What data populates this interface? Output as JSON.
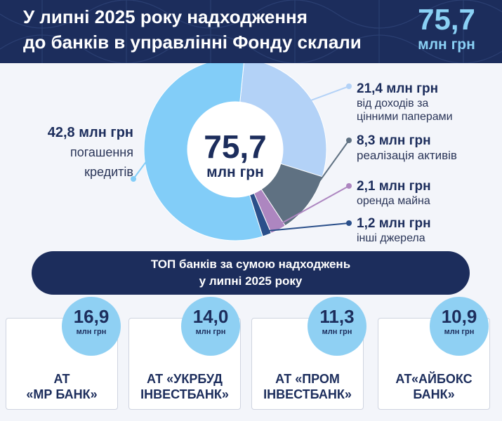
{
  "header": {
    "title_line1": "У липні 2025 року надходження",
    "title_line2": "до банків в управлінні Фонду склали",
    "total_value": "75,7",
    "total_unit": "млн грн"
  },
  "chart_data": {
    "type": "pie",
    "total": 75.7,
    "unit": "млн грн",
    "center_value": "75,7",
    "center_unit": "млн грн",
    "slices": [
      {
        "label_value": "42,8 млн грн",
        "label_desc_1": "погашення",
        "label_desc_2": "кредитів",
        "value": 42.8,
        "color": "#82cdf8"
      },
      {
        "label_value": "21,4 млн грн",
        "label_desc_1": "від доходів за",
        "label_desc_2": "цінними паперами",
        "value": 21.4,
        "color": "#b3d2f7"
      },
      {
        "label_value": "8,3 млн грн",
        "label_desc_1": "реалізація активів",
        "label_desc_2": "",
        "value": 8.3,
        "color": "#5f7182"
      },
      {
        "label_value": "2,1 млн грн",
        "label_desc_1": "оренда майна",
        "label_desc_2": "",
        "value": 2.1,
        "color": "#ad86c0"
      },
      {
        "label_value": "1,2 млн грн",
        "label_desc_1": "інші джерела",
        "label_desc_2": "",
        "value": 1.2,
        "color": "#2a4f8a"
      }
    ]
  },
  "top_banner": {
    "line1": "ТОП банків за сумою надходжень",
    "line2": "у липні 2025 року"
  },
  "banks": [
    {
      "value": "16,9",
      "unit": "млн грн",
      "name_line1": "АТ",
      "name_line2": "«МР БАНК»"
    },
    {
      "value": "14,0",
      "unit": "млн грн",
      "name_line1": "АТ «УКРБУД",
      "name_line2": "ІНВЕСТБАНК»"
    },
    {
      "value": "11,3",
      "unit": "млн грн",
      "name_line1": "АТ «ПРОМ",
      "name_line2": "ІНВЕСТБАНК»"
    },
    {
      "value": "10,9",
      "unit": "млн грн",
      "name_line1": "АТ«АЙБОКС",
      "name_line2": "БАНК»"
    }
  ]
}
